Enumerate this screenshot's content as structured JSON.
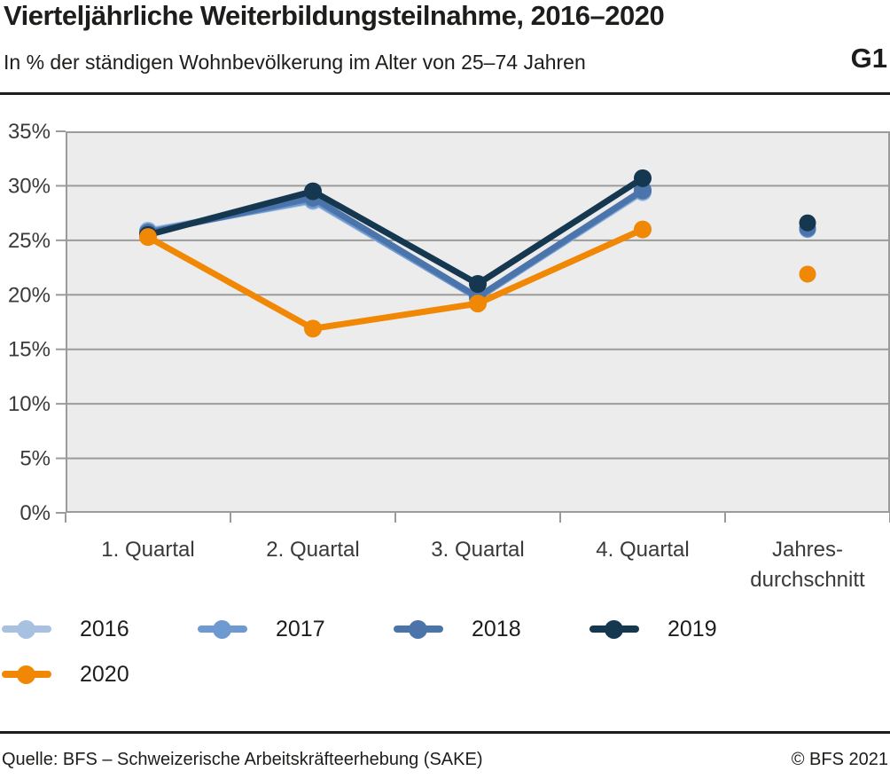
{
  "header": {
    "title": "Vierteljährliche Weiterbildungsteilnahme, 2016–2020",
    "subtitle": "In % der ständigen Wohnbevölkerung im Alter von 25–74 Jahren",
    "figure_code": "G1"
  },
  "chart_data": {
    "type": "line",
    "title": "Vierteljährliche Weiterbildungsteilnahme, 2016–2020",
    "subtitle": "In % der ständigen Wohnbevölkerung im Alter von 25–74 Jahren",
    "categories": [
      "1. Quartal",
      "2. Quartal",
      "3. Quartal",
      "4. Quartal",
      "Jahres-\ndurchschnitt"
    ],
    "series": [
      {
        "name": "2016",
        "color": "#a8c1e0",
        "quarters": [
          25.9,
          28.6,
          19.7,
          29.4
        ],
        "annual_average": 26.0
      },
      {
        "name": "2017",
        "color": "#6f99d1",
        "quarters": [
          25.8,
          28.7,
          19.7,
          29.5
        ],
        "annual_average": 26.0
      },
      {
        "name": "2018",
        "color": "#4b74ab",
        "quarters": [
          25.7,
          28.9,
          19.8,
          29.6
        ],
        "annual_average": 26.1
      },
      {
        "name": "2019",
        "color": "#15374f",
        "quarters": [
          25.5,
          29.5,
          21.0,
          30.7
        ],
        "annual_average": 26.6
      },
      {
        "name": "2020",
        "color": "#f08705",
        "quarters": [
          25.3,
          16.9,
          19.2,
          26.0
        ],
        "annual_average": 21.9
      }
    ],
    "ylim": [
      0,
      35
    ],
    "y_tick_step": 5,
    "y_tick_labels": [
      "0%",
      "5%",
      "10%",
      "15%",
      "20%",
      "25%",
      "30%",
      "35%"
    ],
    "grid": true,
    "legend_position": "bottom",
    "plot_bg_color": "#ececec",
    "grid_color": "#9b9b9b",
    "axis_text_color": "#3a3a3a",
    "annual_average_is_detached_point": true
  },
  "footer": {
    "source": "Quelle: BFS – Schweizerische Arbeitskräfteerhebung (SAKE)",
    "copyright": "© BFS 2021"
  }
}
